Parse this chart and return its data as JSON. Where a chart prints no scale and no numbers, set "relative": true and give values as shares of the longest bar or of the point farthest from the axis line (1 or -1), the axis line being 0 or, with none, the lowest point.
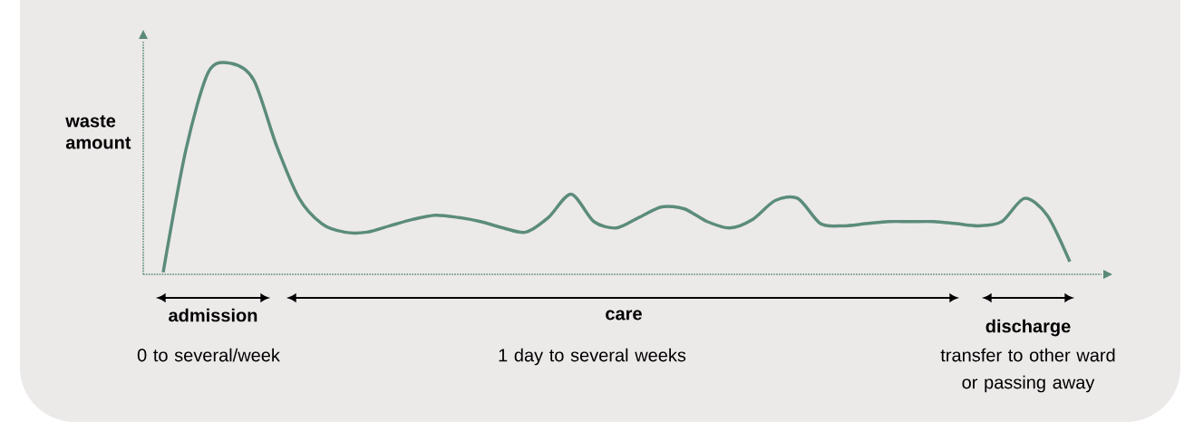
{
  "chart_data": {
    "type": "line",
    "relative": true,
    "ylabel": "waste amount",
    "color": "#5b8c7b",
    "categories": [
      null,
      null,
      null,
      null,
      null,
      null,
      null,
      null,
      null,
      null,
      null,
      null,
      null,
      null,
      null,
      null,
      null,
      null,
      null,
      null,
      null,
      null,
      null,
      null,
      null,
      null,
      null,
      null,
      null,
      null,
      null,
      null,
      null,
      null,
      null,
      null,
      null,
      null,
      null,
      null,
      null
    ],
    "values": [
      0.01,
      0.59,
      0.96,
      1.0,
      0.92,
      0.61,
      0.36,
      0.24,
      0.2,
      0.2,
      0.23,
      0.26,
      0.28,
      0.27,
      0.25,
      0.22,
      0.2,
      0.27,
      0.38,
      0.25,
      0.22,
      0.27,
      0.32,
      0.31,
      0.25,
      0.22,
      0.26,
      0.35,
      0.36,
      0.24,
      0.23,
      0.24,
      0.25,
      0.25,
      0.25,
      0.24,
      0.23,
      0.25,
      0.36,
      0.28,
      0.06
    ],
    "annotations": [
      "admission",
      "0 to several/week",
      "care",
      "1 day to several weeks",
      "discharge",
      "transfer to other ward or passing away"
    ]
  }
}
